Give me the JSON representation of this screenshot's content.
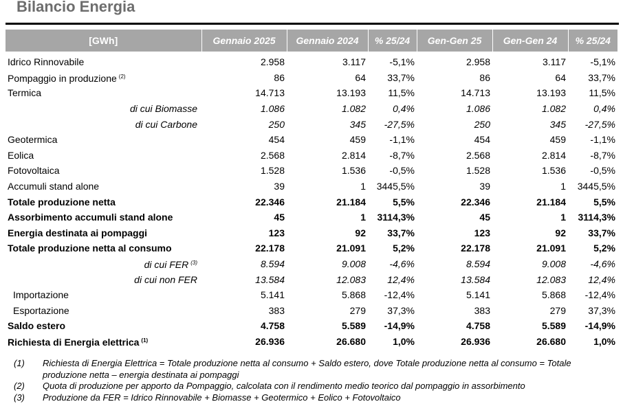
{
  "title": "Bilancio Energia",
  "table": {
    "headers": [
      "[GWh]",
      "Gennaio 2025",
      "Gennaio 2024",
      "% 25/24",
      "Gen-Gen 25",
      "Gen-Gen 24",
      "% 25/24"
    ],
    "rows": [
      {
        "label": "Idrico Rinnovabile",
        "sup": "",
        "style": "normal",
        "values": [
          "2.958",
          "3.117",
          "-5,1%",
          "2.958",
          "3.117",
          "-5,1%"
        ]
      },
      {
        "label": "Pompaggio in produzione",
        "sup": "(2)",
        "style": "normal",
        "values": [
          "86",
          "64",
          "33,7%",
          "86",
          "64",
          "33,7%"
        ]
      },
      {
        "label": "Termica",
        "sup": "",
        "style": "normal",
        "values": [
          "14.713",
          "13.193",
          "11,5%",
          "14.713",
          "13.193",
          "11,5%"
        ]
      },
      {
        "label": "di cui Biomasse",
        "sup": "",
        "style": "sub",
        "values": [
          "1.086",
          "1.082",
          "0,4%",
          "1.086",
          "1.082",
          "0,4%"
        ]
      },
      {
        "label": "di cui Carbone",
        "sup": "",
        "style": "sub",
        "values": [
          "250",
          "345",
          "-27,5%",
          "250",
          "345",
          "-27,5%"
        ]
      },
      {
        "label": "Geotermica",
        "sup": "",
        "style": "normal",
        "values": [
          "454",
          "459",
          "-1,1%",
          "454",
          "459",
          "-1,1%"
        ]
      },
      {
        "label": "Eolica",
        "sup": "",
        "style": "normal",
        "values": [
          "2.568",
          "2.814",
          "-8,7%",
          "2.568",
          "2.814",
          "-8,7%"
        ]
      },
      {
        "label": "Fotovoltaica",
        "sup": "",
        "style": "normal",
        "values": [
          "1.528",
          "1.536",
          "-0,5%",
          "1.528",
          "1.536",
          "-0,5%"
        ]
      },
      {
        "label": "Accumuli stand alone",
        "sup": "",
        "style": "normal",
        "values": [
          "39",
          "1",
          "3445,5%",
          "39",
          "1",
          "3445,5%"
        ]
      },
      {
        "label": "Totale produzione netta",
        "sup": "",
        "style": "bold",
        "values": [
          "22.346",
          "21.184",
          "5,5%",
          "22.346",
          "21.184",
          "5,5%"
        ]
      },
      {
        "label": "Assorbimento accumuli stand alone",
        "sup": "",
        "style": "bold",
        "values": [
          "45",
          "1",
          "3114,3%",
          "45",
          "1",
          "3114,3%"
        ]
      },
      {
        "label": "Energia destinata ai pompaggi",
        "sup": "",
        "style": "bold",
        "values": [
          "123",
          "92",
          "33,7%",
          "123",
          "92",
          "33,7%"
        ]
      },
      {
        "label": "Totale produzione netta al consumo",
        "sup": "",
        "style": "bold",
        "values": [
          "22.178",
          "21.091",
          "5,2%",
          "22.178",
          "21.091",
          "5,2%"
        ]
      },
      {
        "label": "di cui FER",
        "sup": "(3)",
        "style": "sub",
        "values": [
          "8.594",
          "9.008",
          "-4,6%",
          "8.594",
          "9.008",
          "-4,6%"
        ]
      },
      {
        "label": "di cui non FER",
        "sup": "",
        "style": "sub",
        "values": [
          "13.584",
          "12.083",
          "12,4%",
          "13.584",
          "12.083",
          "12,4%"
        ]
      },
      {
        "label": "Importazione",
        "sup": "",
        "style": "indent",
        "values": [
          "5.141",
          "5.868",
          "-12,4%",
          "5.141",
          "5.868",
          "-12,4%"
        ]
      },
      {
        "label": "Esportazione",
        "sup": "",
        "style": "indent",
        "values": [
          "383",
          "279",
          "37,3%",
          "383",
          "279",
          "37,3%"
        ]
      },
      {
        "label": "Saldo estero",
        "sup": "",
        "style": "bold",
        "values": [
          "4.758",
          "5.589",
          "-14,9%",
          "4.758",
          "5.589",
          "-14,9%"
        ]
      },
      {
        "label": "Richiesta di Energia elettrica",
        "sup": "(1)",
        "style": "bold",
        "values": [
          "26.936",
          "26.680",
          "1,0%",
          "26.936",
          "26.680",
          "1,0%"
        ]
      }
    ]
  },
  "notes": [
    {
      "mark": "(1)",
      "text": "Richiesta di Energia Elettrica = Totale produzione netta al consumo + Saldo estero, dove Totale produzione netta al consumo = Totale produzione netta – energia destinata ai pompaggi"
    },
    {
      "mark": "(2)",
      "text": "Quota di produzione per apporto da Pompaggio, calcolata con il rendimento medio teorico dal pompaggio in assorbimento"
    },
    {
      "mark": "(3)",
      "text": "Produzione da FER = Idrico Rinnovabile + Biomasse + Geotermico + Eolico + Fotovoltaico"
    }
  ]
}
